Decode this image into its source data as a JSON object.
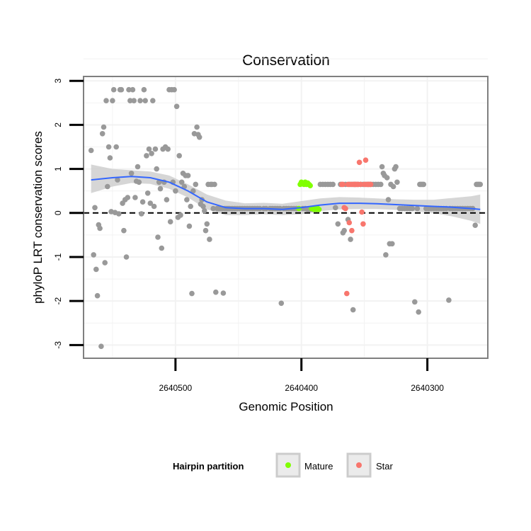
{
  "chart_data": {
    "type": "scatter",
    "title": "Conservation",
    "xlabel": "Genomic Position",
    "ylabel": "phyloP LRT conservation scores",
    "xlim": [
      2640573,
      2640252
    ],
    "ylim": [
      -3.3,
      3.1
    ],
    "x_reversed": true,
    "x_ticks": [
      2640500,
      2640400,
      2640300
    ],
    "x_tick_labels": [
      "2640500",
      "2640400",
      "2640300"
    ],
    "y_ticks": [
      -3,
      -2,
      -1,
      0,
      1,
      2,
      3
    ],
    "y_tick_labels": [
      "-3",
      "-2",
      "-1",
      "0",
      "1",
      "2",
      "3"
    ],
    "reference_line": {
      "y": 0,
      "style": "dashed"
    },
    "legend": {
      "title": "Hairpin partition",
      "position": "bottom",
      "entries": [
        {
          "label": "Mature",
          "color": "#80ff00"
        },
        {
          "label": "Star",
          "color": "#f8766d"
        }
      ]
    },
    "colors": {
      "other": "#999999",
      "Mature": "#80ff00",
      "Star": "#f8766d",
      "smooth": "#3366ff",
      "ribbon": "#cccccc",
      "panel_border": "#7f7f7f",
      "grid": "#f2f2f2"
    },
    "series": [
      {
        "name": "Other",
        "points": [
          [
            2640567,
            1.42
          ],
          [
            2640565,
            -0.95
          ],
          [
            2640564,
            0.12
          ],
          [
            2640563,
            -1.28
          ],
          [
            2640562,
            -1.88
          ],
          [
            2640561,
            -0.27
          ],
          [
            2640560,
            -0.35
          ],
          [
            2640559,
            -3.03
          ],
          [
            2640558,
            1.8
          ],
          [
            2640557,
            1.95
          ],
          [
            2640556,
            -1.13
          ],
          [
            2640555,
            2.55
          ],
          [
            2640554,
            0.6
          ],
          [
            2640553,
            1.5
          ],
          [
            2640552,
            1.25
          ],
          [
            2640551,
            0.03
          ],
          [
            2640550,
            2.55
          ],
          [
            2640549,
            2.8
          ],
          [
            2640548,
            0.01
          ],
          [
            2640547,
            1.5
          ],
          [
            2640546,
            0.75
          ],
          [
            2640545,
            -0.02
          ],
          [
            2640544,
            2.8
          ],
          [
            2640543,
            2.8
          ],
          [
            2640542,
            0.22
          ],
          [
            2640541,
            -0.4
          ],
          [
            2640540,
            0.3
          ],
          [
            2640539,
            -1.0
          ],
          [
            2640538,
            0.35
          ],
          [
            2640537,
            2.8
          ],
          [
            2640536,
            2.55
          ],
          [
            2640535,
            0.9
          ],
          [
            2640534,
            2.8
          ],
          [
            2640533,
            2.55
          ],
          [
            2640532,
            0.35
          ],
          [
            2640531,
            0.72
          ],
          [
            2640530,
            1.05
          ],
          [
            2640529,
            0.7
          ],
          [
            2640528,
            2.55
          ],
          [
            2640527,
            -0.02
          ],
          [
            2640526,
            0.25
          ],
          [
            2640525,
            2.8
          ],
          [
            2640524,
            2.55
          ],
          [
            2640523,
            1.3
          ],
          [
            2640522,
            0.45
          ],
          [
            2640521,
            1.45
          ],
          [
            2640520,
            0.22
          ],
          [
            2640519,
            1.35
          ],
          [
            2640518,
            2.55
          ],
          [
            2640517,
            0.15
          ],
          [
            2640516,
            1.45
          ],
          [
            2640515,
            1.0
          ],
          [
            2640514,
            -0.55
          ],
          [
            2640513,
            0.7
          ],
          [
            2640512,
            0.55
          ],
          [
            2640511,
            -0.8
          ],
          [
            2640510,
            1.45
          ],
          [
            2640509,
            0.7
          ],
          [
            2640508,
            1.5
          ],
          [
            2640507,
            0.3
          ],
          [
            2640506,
            1.45
          ],
          [
            2640505,
            2.8
          ],
          [
            2640504,
            -0.2
          ],
          [
            2640503,
            2.8
          ],
          [
            2640502,
            0.7
          ],
          [
            2640501,
            2.8
          ],
          [
            2640500,
            0.5
          ],
          [
            2640499,
            2.42
          ],
          [
            2640498,
            -0.1
          ],
          [
            2640497,
            1.3
          ],
          [
            2640496,
            -0.05
          ],
          [
            2640495,
            0.7
          ],
          [
            2640494,
            0.9
          ],
          [
            2640493,
            0.6
          ],
          [
            2640492,
            0.85
          ],
          [
            2640491,
            0.3
          ],
          [
            2640490,
            0.85
          ],
          [
            2640489,
            -0.3
          ],
          [
            2640488,
            0.15
          ],
          [
            2640487,
            -1.83
          ],
          [
            2640486,
            0.5
          ],
          [
            2640485,
            1.8
          ],
          [
            2640484,
            0.65
          ],
          [
            2640483,
            1.95
          ],
          [
            2640482,
            1.78
          ],
          [
            2640481,
            1.72
          ],
          [
            2640480,
            0.2
          ],
          [
            2640479,
            0.3
          ],
          [
            2640478,
            0.15
          ],
          [
            2640477,
            0.05
          ],
          [
            2640476,
            -0.4
          ],
          [
            2640475,
            -0.25
          ],
          [
            2640474,
            0.65
          ],
          [
            2640473,
            -0.6
          ],
          [
            2640472,
            0.65
          ],
          [
            2640471,
            0.65
          ],
          [
            2640470,
            0.1
          ],
          [
            2640469,
            0.65
          ],
          [
            2640468,
            -1.8
          ],
          [
            2640467,
            0.1
          ],
          [
            2640466,
            0.1
          ],
          [
            2640465,
            0.1
          ],
          [
            2640464,
            0.1
          ],
          [
            2640463,
            0.1
          ],
          [
            2640462,
            -1.82
          ],
          [
            2640461,
            0.1
          ],
          [
            2640460,
            0.1
          ],
          [
            2640459,
            0.1
          ],
          [
            2640458,
            0.1
          ],
          [
            2640457,
            0.1
          ],
          [
            2640455,
            0.1
          ],
          [
            2640453,
            0.1
          ],
          [
            2640451,
            0.1
          ],
          [
            2640449,
            0.1
          ],
          [
            2640447,
            0.1
          ],
          [
            2640445,
            0.1
          ],
          [
            2640443,
            0.1
          ],
          [
            2640441,
            0.1
          ],
          [
            2640439,
            0.1
          ],
          [
            2640437,
            0.1
          ],
          [
            2640435,
            0.1
          ],
          [
            2640433,
            0.1
          ],
          [
            2640430,
            0.1
          ],
          [
            2640428,
            0.1
          ],
          [
            2640425,
            0.1
          ],
          [
            2640423,
            0.1
          ],
          [
            2640421,
            0.1
          ],
          [
            2640419,
            0.1
          ],
          [
            2640417,
            0.1
          ],
          [
            2640416,
            -2.05
          ],
          [
            2640414,
            0.1
          ],
          [
            2640412,
            0.1
          ],
          [
            2640410,
            0.1
          ],
          [
            2640408,
            0.1
          ],
          [
            2640406,
            0.1
          ],
          [
            2640404,
            0.1
          ],
          [
            2640399,
            0.1
          ],
          [
            2640397,
            0.1
          ],
          [
            2640395,
            0.08
          ],
          [
            2640393,
            0.08
          ],
          [
            2640391,
            0.08
          ],
          [
            2640389,
            0.1
          ],
          [
            2640387,
            0.1
          ],
          [
            2640385,
            0.65
          ],
          [
            2640383,
            0.65
          ],
          [
            2640381,
            0.65
          ],
          [
            2640379,
            0.65
          ],
          [
            2640377,
            0.65
          ],
          [
            2640375,
            0.65
          ],
          [
            2640373,
            0.12
          ],
          [
            2640371,
            -0.25
          ],
          [
            2640369,
            0.65
          ],
          [
            2640367,
            -0.45
          ],
          [
            2640366,
            -0.4
          ],
          [
            2640365,
            0.65
          ],
          [
            2640363,
            -0.15
          ],
          [
            2640362,
            0.65
          ],
          [
            2640361,
            -0.6
          ],
          [
            2640360,
            0.65
          ],
          [
            2640359,
            -2.2
          ],
          [
            2640358,
            0.65
          ],
          [
            2640357,
            0.65
          ],
          [
            2640355,
            0.65
          ],
          [
            2640353,
            0.65
          ],
          [
            2640351,
            0.65
          ],
          [
            2640349,
            0.65
          ],
          [
            2640347,
            0.65
          ],
          [
            2640345,
            0.65
          ],
          [
            2640343,
            0.65
          ],
          [
            2640341,
            0.65
          ],
          [
            2640339,
            0.65
          ],
          [
            2640337,
            0.65
          ],
          [
            2640336,
            1.05
          ],
          [
            2640335,
            0.9
          ],
          [
            2640334,
            0.85
          ],
          [
            2640333,
            -0.95
          ],
          [
            2640332,
            0.8
          ],
          [
            2640331,
            0.3
          ],
          [
            2640330,
            -0.7
          ],
          [
            2640329,
            0.65
          ],
          [
            2640328,
            -0.7
          ],
          [
            2640327,
            0.6
          ],
          [
            2640326,
            1.0
          ],
          [
            2640325,
            1.05
          ],
          [
            2640324,
            0.7
          ],
          [
            2640322,
            0.1
          ],
          [
            2640320,
            0.1
          ],
          [
            2640318,
            0.1
          ],
          [
            2640316,
            0.1
          ],
          [
            2640314,
            0.1
          ],
          [
            2640312,
            0.1
          ],
          [
            2640310,
            -2.02
          ],
          [
            2640308,
            0.1
          ],
          [
            2640307,
            -2.25
          ],
          [
            2640306,
            0.65
          ],
          [
            2640305,
            0.65
          ],
          [
            2640304,
            0.65
          ],
          [
            2640303,
            0.65
          ],
          [
            2640301,
            0.1
          ],
          [
            2640299,
            0.1
          ],
          [
            2640297,
            0.1
          ],
          [
            2640295,
            0.1
          ],
          [
            2640293,
            0.1
          ],
          [
            2640291,
            0.1
          ],
          [
            2640289,
            0.1
          ],
          [
            2640287,
            0.1
          ],
          [
            2640285,
            0.1
          ],
          [
            2640283,
            -1.98
          ],
          [
            2640282,
            0.1
          ],
          [
            2640280,
            0.1
          ],
          [
            2640278,
            0.1
          ],
          [
            2640276,
            0.1
          ],
          [
            2640274,
            0.1
          ],
          [
            2640272,
            0.1
          ],
          [
            2640270,
            0.1
          ],
          [
            2640268,
            0.1
          ],
          [
            2640266,
            0.1
          ],
          [
            2640264,
            0.1
          ],
          [
            2640262,
            -0.28
          ],
          [
            2640261,
            0.65
          ],
          [
            2640260,
            0.65
          ],
          [
            2640259,
            0.65
          ],
          [
            2640258,
            0.65
          ]
        ]
      },
      {
        "name": "Mature",
        "points": [
          [
            2640402,
            0.1
          ],
          [
            2640401,
            0.65
          ],
          [
            2640400,
            0.7
          ],
          [
            2640399,
            0.68
          ],
          [
            2640398,
            0.65
          ],
          [
            2640397,
            0.7
          ],
          [
            2640396,
            0.65
          ],
          [
            2640395,
            0.68
          ],
          [
            2640394,
            0.65
          ],
          [
            2640393,
            0.62
          ],
          [
            2640392,
            0.1
          ],
          [
            2640391,
            0.1
          ],
          [
            2640390,
            0.08
          ],
          [
            2640389,
            0.1
          ],
          [
            2640388,
            0.08
          ],
          [
            2640387,
            0.1
          ],
          [
            2640386,
            0.08
          ]
        ]
      },
      {
        "name": "Star",
        "points": [
          [
            2640368,
            0.65
          ],
          [
            2640367,
            0.65
          ],
          [
            2640366,
            0.12
          ],
          [
            2640365,
            0.1
          ],
          [
            2640364,
            -1.83
          ],
          [
            2640363,
            0.65
          ],
          [
            2640362,
            -0.22
          ],
          [
            2640361,
            0.65
          ],
          [
            2640360,
            -0.4
          ],
          [
            2640359,
            0.65
          ],
          [
            2640358,
            0.65
          ],
          [
            2640357,
            0.65
          ],
          [
            2640356,
            0.65
          ],
          [
            2640355,
            0.65
          ],
          [
            2640354,
            1.15
          ],
          [
            2640353,
            0.65
          ],
          [
            2640352,
            0.02
          ],
          [
            2640351,
            -0.25
          ],
          [
            2640350,
            0.65
          ],
          [
            2640349,
            1.2
          ],
          [
            2640348,
            0.65
          ],
          [
            2640347,
            0.65
          ],
          [
            2640346,
            0.65
          ],
          [
            2640345,
            0.65
          ]
        ]
      }
    ],
    "smooth": {
      "x": [
        2640567,
        2640550,
        2640535,
        2640520,
        2640505,
        2640490,
        2640475,
        2640460,
        2640445,
        2640430,
        2640415,
        2640400,
        2640385,
        2640370,
        2640355,
        2640340,
        2640325,
        2640310,
        2640295,
        2640280,
        2640265,
        2640258
      ],
      "y": [
        0.75,
        0.8,
        0.83,
        0.8,
        0.7,
        0.5,
        0.25,
        0.12,
        0.1,
        0.1,
        0.08,
        0.12,
        0.18,
        0.22,
        0.22,
        0.21,
        0.19,
        0.17,
        0.15,
        0.13,
        0.1,
        0.08
      ],
      "lo": [
        0.45,
        0.6,
        0.68,
        0.66,
        0.55,
        0.35,
        0.08,
        -0.05,
        -0.05,
        -0.03,
        -0.05,
        -0.03,
        0.04,
        0.08,
        0.09,
        0.09,
        0.07,
        0.04,
        0.0,
        -0.08,
        -0.18,
        -0.25
      ],
      "hi": [
        1.1,
        1.0,
        0.97,
        0.94,
        0.85,
        0.65,
        0.42,
        0.28,
        0.22,
        0.23,
        0.21,
        0.27,
        0.33,
        0.36,
        0.35,
        0.33,
        0.31,
        0.3,
        0.3,
        0.34,
        0.38,
        0.42
      ]
    }
  }
}
